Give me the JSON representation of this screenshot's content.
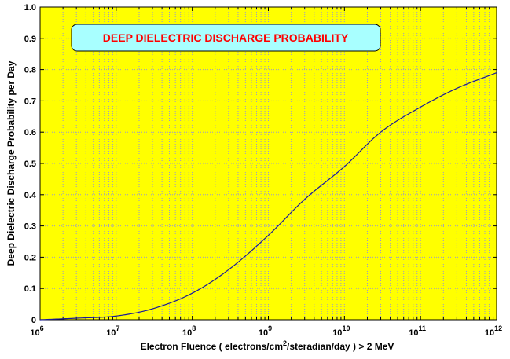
{
  "colors": {
    "plot_background": "#ffff00",
    "grid": "#9999cc",
    "curve": "#1a1a9a",
    "title_box": "#a8ffff",
    "title_text": "#ff0000"
  },
  "chart_data": {
    "type": "line",
    "title": "DEEP DIELECTRIC DISCHARGE PROBABILITY",
    "xlabel": {
      "main": "Electron Fluence  ( electrons/cm",
      "sup": "2",
      "rest": "/steradian/day )    > 2 MeV"
    },
    "ylabel": "Deep Dielectric Discharge Probability per Day",
    "x_scale": "log",
    "xlim": [
      1000000,
      1000000000000
    ],
    "ylim": [
      0,
      1
    ],
    "x_ticks": [
      {
        "base": "10",
        "exp": "6"
      },
      {
        "base": "10",
        "exp": "7"
      },
      {
        "base": "10",
        "exp": "8"
      },
      {
        "base": "10",
        "exp": "9"
      },
      {
        "base": "10",
        "exp": "10"
      },
      {
        "base": "10",
        "exp": "11"
      },
      {
        "base": "10",
        "exp": "12"
      }
    ],
    "y_ticks": [
      "0",
      "0.1",
      "0.2",
      "0.3",
      "0.4",
      "0.5",
      "0.6",
      "0.7",
      "0.8",
      "0.9",
      "1.0"
    ],
    "grid": true,
    "series": [
      {
        "x": [
          1000000,
          3000000,
          10000000,
          30000000,
          100000000,
          300000000,
          1000000000,
          3000000000,
          10000000000,
          30000000000,
          100000000000,
          300000000000,
          1000000000000
        ],
        "y": [
          0.0,
          0.005,
          0.012,
          0.035,
          0.085,
          0.16,
          0.27,
          0.385,
          0.49,
          0.6,
          0.68,
          0.74,
          0.79
        ]
      }
    ]
  }
}
